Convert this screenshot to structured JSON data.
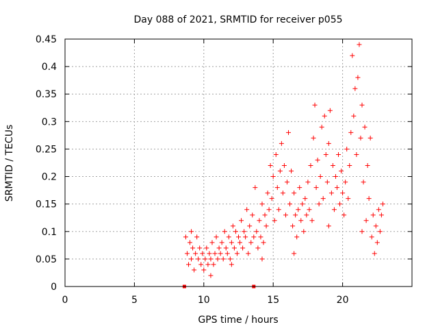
{
  "chart_data": {
    "type": "scatter",
    "title": "Day 088 of 2021, SRMTID for receiver p055",
    "xlabel": "GPS time / hours",
    "ylabel": "SRMTID / TECUs",
    "xlim": [
      0,
      25
    ],
    "ylim": [
      0,
      0.45
    ],
    "xticks": [
      0,
      5,
      10,
      15,
      20
    ],
    "yticks": [
      0,
      0.05,
      0.1,
      0.15,
      0.2,
      0.25,
      0.3,
      0.35,
      0.4,
      0.45
    ],
    "xtick_labels": [
      "0",
      "5",
      "10",
      "15",
      "20"
    ],
    "ytick_labels": [
      "0",
      "0.05",
      "0.1",
      "0.15",
      "0.2",
      "0.25",
      "0.3",
      "0.35",
      "0.4",
      "0.45"
    ],
    "grid": true,
    "marker": "+",
    "color": "#ff0000",
    "series": [
      {
        "name": "SRMTID",
        "points": [
          [
            8.7,
            0.09
          ],
          [
            8.8,
            0.06
          ],
          [
            8.9,
            0.04
          ],
          [
            9.0,
            0.08
          ],
          [
            9.1,
            0.05
          ],
          [
            9.2,
            0.07
          ],
          [
            9.3,
            0.03
          ],
          [
            9.4,
            0.06
          ],
          [
            9.5,
            0.09
          ],
          [
            9.6,
            0.05
          ],
          [
            9.7,
            0.07
          ],
          [
            9.8,
            0.04
          ],
          [
            9.9,
            0.06
          ],
          [
            10.0,
            0.03
          ],
          [
            10.1,
            0.05
          ],
          [
            10.2,
            0.07
          ],
          [
            10.3,
            0.04
          ],
          [
            10.4,
            0.06
          ],
          [
            10.5,
            0.05
          ],
          [
            10.6,
            0.08
          ],
          [
            10.7,
            0.04
          ],
          [
            10.8,
            0.06
          ],
          [
            10.9,
            0.09
          ],
          [
            11.0,
            0.05
          ],
          [
            11.1,
            0.07
          ],
          [
            11.2,
            0.06
          ],
          [
            11.3,
            0.08
          ],
          [
            11.4,
            0.05
          ],
          [
            11.5,
            0.1
          ],
          [
            11.6,
            0.07
          ],
          [
            11.7,
            0.06
          ],
          [
            11.8,
            0.09
          ],
          [
            11.9,
            0.05
          ],
          [
            12.0,
            0.08
          ],
          [
            12.1,
            0.11
          ],
          [
            12.2,
            0.07
          ],
          [
            12.3,
            0.1
          ],
          [
            12.4,
            0.06
          ],
          [
            12.5,
            0.09
          ],
          [
            12.6,
            0.08
          ],
          [
            12.7,
            0.12
          ],
          [
            12.8,
            0.07
          ],
          [
            12.9,
            0.1
          ],
          [
            13.0,
            0.09
          ],
          [
            13.1,
            0.14
          ],
          [
            13.2,
            0.06
          ],
          [
            13.3,
            0.11
          ],
          [
            13.4,
            0.08
          ],
          [
            13.5,
            0.13
          ],
          [
            13.6,
            0.09
          ],
          [
            13.7,
            0.18
          ],
          [
            13.8,
            0.1
          ],
          [
            13.9,
            0.07
          ],
          [
            14.0,
            0.12
          ],
          [
            14.1,
            0.09
          ],
          [
            14.2,
            0.15
          ],
          [
            14.3,
            0.08
          ],
          [
            14.4,
            0.13
          ],
          [
            14.5,
            0.11
          ],
          [
            14.6,
            0.17
          ],
          [
            14.7,
            0.14
          ],
          [
            14.8,
            0.22
          ],
          [
            14.9,
            0.16
          ],
          [
            15.0,
            0.2
          ],
          [
            15.1,
            0.12
          ],
          [
            15.2,
            0.24
          ],
          [
            15.3,
            0.18
          ],
          [
            15.4,
            0.14
          ],
          [
            15.5,
            0.21
          ],
          [
            15.6,
            0.26
          ],
          [
            15.7,
            0.17
          ],
          [
            15.8,
            0.22
          ],
          [
            15.9,
            0.13
          ],
          [
            16.0,
            0.19
          ],
          [
            16.1,
            0.28
          ],
          [
            16.2,
            0.15
          ],
          [
            16.3,
            0.21
          ],
          [
            16.4,
            0.11
          ],
          [
            16.5,
            0.17
          ],
          [
            16.6,
            0.13
          ],
          [
            16.7,
            0.09
          ],
          [
            16.8,
            0.14
          ],
          [
            16.9,
            0.18
          ],
          [
            17.0,
            0.12
          ],
          [
            17.1,
            0.15
          ],
          [
            17.2,
            0.1
          ],
          [
            17.3,
            0.16
          ],
          [
            17.4,
            0.13
          ],
          [
            17.5,
            0.19
          ],
          [
            17.6,
            0.14
          ],
          [
            17.7,
            0.22
          ],
          [
            17.8,
            0.12
          ],
          [
            17.9,
            0.27
          ],
          [
            18.0,
            0.33
          ],
          [
            18.1,
            0.18
          ],
          [
            18.2,
            0.23
          ],
          [
            18.3,
            0.15
          ],
          [
            18.4,
            0.2
          ],
          [
            18.5,
            0.29
          ],
          [
            18.6,
            0.16
          ],
          [
            18.7,
            0.31
          ],
          [
            18.8,
            0.24
          ],
          [
            18.9,
            0.19
          ],
          [
            19.0,
            0.26
          ],
          [
            19.1,
            0.32
          ],
          [
            19.2,
            0.17
          ],
          [
            19.3,
            0.22
          ],
          [
            19.4,
            0.14
          ],
          [
            19.5,
            0.2
          ],
          [
            19.6,
            0.18
          ],
          [
            19.7,
            0.24
          ],
          [
            19.8,
            0.15
          ],
          [
            19.9,
            0.21
          ],
          [
            20.0,
            0.17
          ],
          [
            20.1,
            0.13
          ],
          [
            20.2,
            0.19
          ],
          [
            20.3,
            0.25
          ],
          [
            20.4,
            0.16
          ],
          [
            20.5,
            0.22
          ],
          [
            20.6,
            0.28
          ],
          [
            20.7,
            0.42
          ],
          [
            20.8,
            0.31
          ],
          [
            20.9,
            0.36
          ],
          [
            21.0,
            0.24
          ],
          [
            21.1,
            0.38
          ],
          [
            21.2,
            0.44
          ],
          [
            21.3,
            0.27
          ],
          [
            21.4,
            0.33
          ],
          [
            21.5,
            0.19
          ],
          [
            21.6,
            0.29
          ],
          [
            21.7,
            0.12
          ],
          [
            21.8,
            0.22
          ],
          [
            21.9,
            0.16
          ],
          [
            22.0,
            0.27
          ],
          [
            22.1,
            0.09
          ],
          [
            22.2,
            0.13
          ],
          [
            22.3,
            0.06
          ],
          [
            22.4,
            0.11
          ],
          [
            22.5,
            0.08
          ],
          [
            22.6,
            0.14
          ],
          [
            22.7,
            0.1
          ],
          [
            22.8,
            0.13
          ],
          [
            22.9,
            0.15
          ],
          [
            9.1,
            0.1
          ],
          [
            10.5,
            0.02
          ],
          [
            12.0,
            0.04
          ],
          [
            14.2,
            0.05
          ],
          [
            16.5,
            0.06
          ],
          [
            19.0,
            0.11
          ],
          [
            21.4,
            0.1
          ]
        ]
      },
      {
        "name": "zero-markers",
        "marker": "square",
        "points": [
          [
            8.6,
            0
          ],
          [
            13.6,
            0
          ]
        ]
      }
    ]
  }
}
